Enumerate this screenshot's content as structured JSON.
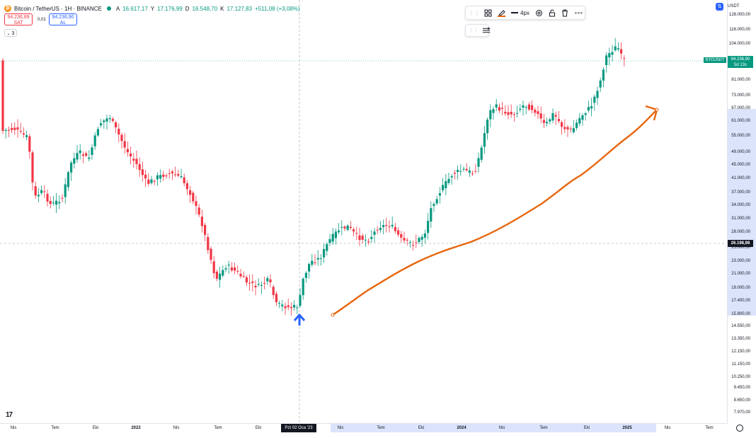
{
  "header": {
    "title": "Bitcoin / TetherUS · 1H · BINANCE",
    "o_label": "A",
    "o_value": "16.617,17",
    "h_label": "Y",
    "h_value": "17.176,99",
    "l_label": "D",
    "l_value": "16.548,70",
    "c_label": "K",
    "c_value": "17.127,83",
    "change": "+511,08 (+3,08%)"
  },
  "trade": {
    "sell_price": "94.236,89",
    "sell_label": "SAT",
    "spread": "0,01",
    "buy_price": "94.236,90",
    "buy_label": "AL"
  },
  "indicators_count": "3",
  "toolbar": {
    "width_label": "4px",
    "line_color": "#e8650c"
  },
  "axis": {
    "currency": "USDT",
    "y_labels": [
      "128.000,00",
      "116.000,00",
      "104.000,00",
      "92.000,00",
      "81.000,00",
      "73.000,00",
      "67.000,00",
      "61.000,00",
      "55.000,00",
      "49.000,00",
      "45.000,00",
      "41.000,00",
      "37.000,00",
      "34.000,00",
      "31.000,00",
      "28.000,00",
      "25.000,00",
      "23.000,00",
      "21.000,00",
      "19.000,00",
      "17.400,00",
      "15.800,00",
      "14.550,00",
      "13.350,00",
      "12.150,00",
      "11.150,00",
      "10.250,00",
      "9.450,00",
      "8.650,00",
      "7.970,00"
    ],
    "symbol_tag": "BTCUSDT",
    "price_tag": "94.236,90",
    "countdown_tag": "5d 13s",
    "crosshair_price": "26.198,98",
    "x_labels": [
      "Nis",
      "Tem",
      "Eki",
      "2022",
      "Nis",
      "Tem",
      "Eki",
      "Nis",
      "Tem",
      "Eki",
      "2024",
      "Nis",
      "Tem",
      "Eki",
      "2025",
      "Nis",
      "Tem"
    ],
    "crosshair_date": "Pzt 02 Oca '23"
  },
  "colors": {
    "up": "#089981",
    "down": "#f23645",
    "trend": "#e8650c",
    "arrow": "#2962ff"
  }
}
